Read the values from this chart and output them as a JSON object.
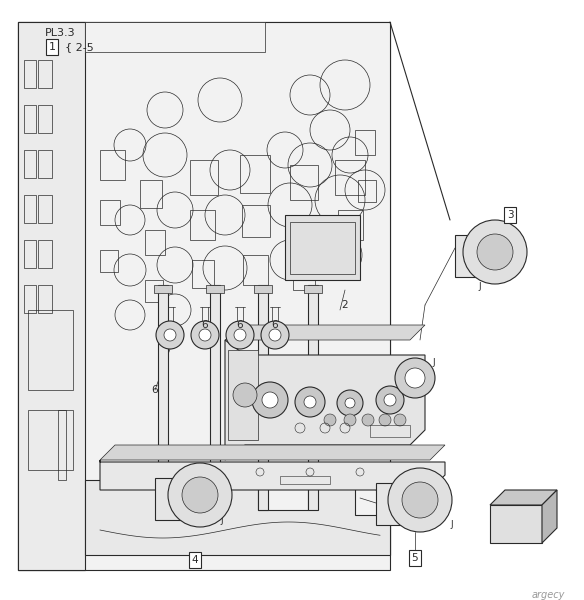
{
  "bg_color": "#ffffff",
  "line_color": "#2a2a2a",
  "gray_fill": "#d8d8d8",
  "light_fill": "#f0f0f0",
  "mid_fill": "#c8c8c8",
  "watermark": "argecy",
  "pl_label": "PL3.3",
  "item1_label": "1",
  "item1_range": "2-5",
  "figsize": [
    5.84,
    6.0
  ],
  "dpi": 100,
  "xlim": [
    0,
    584
  ],
  "ylim": [
    0,
    600
  ]
}
